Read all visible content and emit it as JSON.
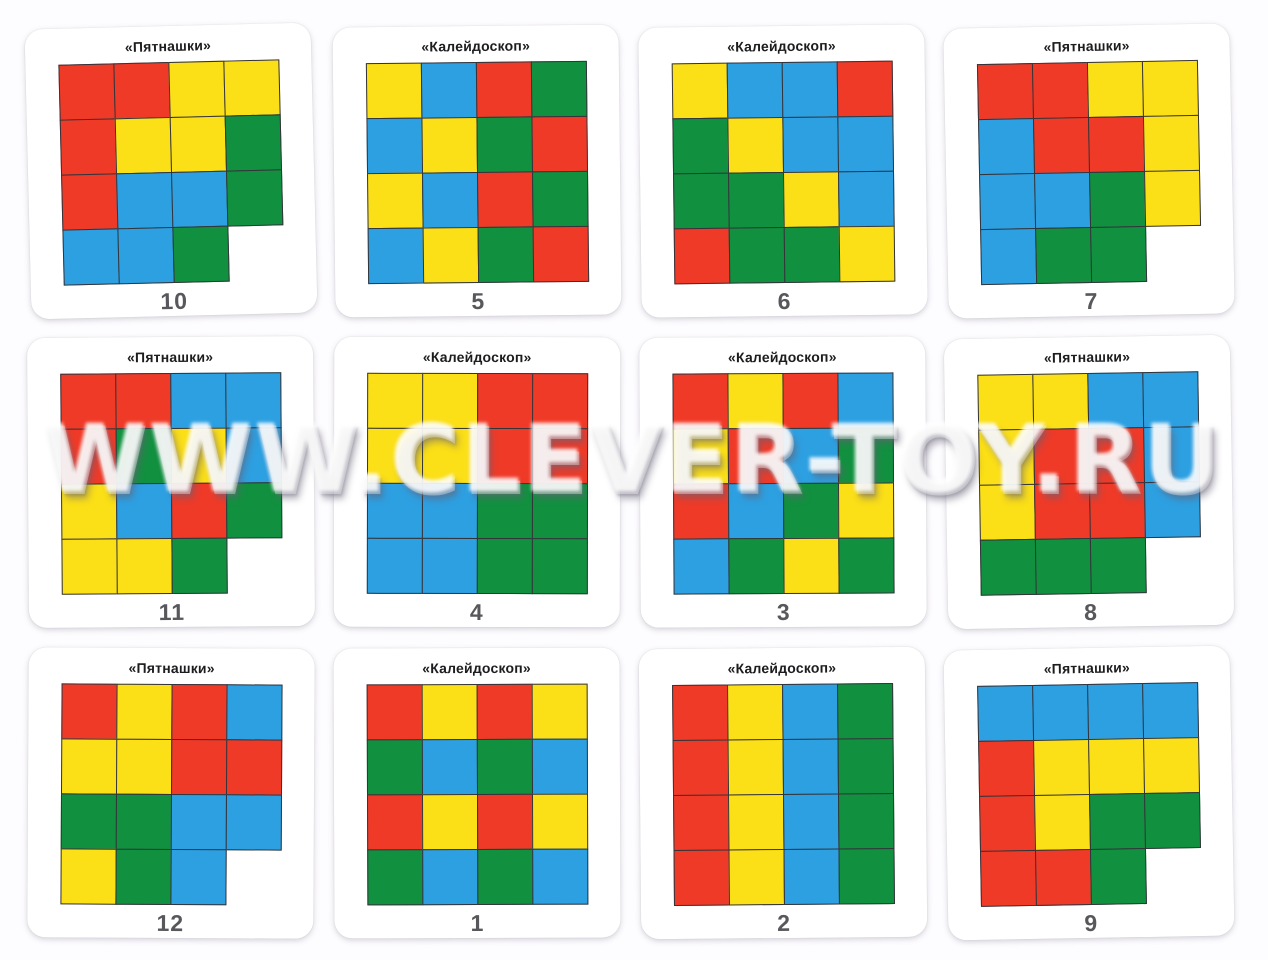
{
  "watermark": "WWW.CLEVER-TOY.RU",
  "palette": {
    "R": "#f03a28",
    "Y": "#fbdf17",
    "B": "#2da0e2",
    "G": "#11913f"
  },
  "titles": {
    "pyatnashki": "«Пятнашки»",
    "kaleidoscope": "«Калейдоскоп»"
  },
  "cards": [
    {
      "title": "«Пятнашки»",
      "number": "10",
      "grid": [
        [
          "R",
          "R",
          "Y",
          "Y"
        ],
        [
          "R",
          "Y",
          "Y",
          "G"
        ],
        [
          "R",
          "B",
          "B",
          "G"
        ],
        [
          "B",
          "B",
          "G",
          ""
        ]
      ]
    },
    {
      "title": "«Калейдоскоп»",
      "number": "5",
      "grid": [
        [
          "Y",
          "B",
          "R",
          "G"
        ],
        [
          "B",
          "Y",
          "G",
          "R"
        ],
        [
          "Y",
          "B",
          "R",
          "G"
        ],
        [
          "B",
          "Y",
          "G",
          "R"
        ]
      ]
    },
    {
      "title": "«Калейдоскоп»",
      "number": "6",
      "grid": [
        [
          "Y",
          "B",
          "B",
          "R"
        ],
        [
          "G",
          "Y",
          "B",
          "B"
        ],
        [
          "G",
          "G",
          "Y",
          "B"
        ],
        [
          "R",
          "G",
          "G",
          "Y"
        ]
      ]
    },
    {
      "title": "«Пятнашки»",
      "number": "7",
      "grid": [
        [
          "R",
          "R",
          "Y",
          "Y"
        ],
        [
          "B",
          "R",
          "R",
          "Y"
        ],
        [
          "B",
          "B",
          "G",
          "Y"
        ],
        [
          "B",
          "G",
          "G",
          ""
        ]
      ]
    },
    {
      "title": "«Пятнашки»",
      "number": "11",
      "grid": [
        [
          "R",
          "R",
          "B",
          "B"
        ],
        [
          "R",
          "G",
          "Y",
          "B"
        ],
        [
          "Y",
          "B",
          "R",
          "G"
        ],
        [
          "Y",
          "Y",
          "G",
          ""
        ]
      ]
    },
    {
      "title": "«Калейдоскоп»",
      "number": "4",
      "grid": [
        [
          "Y",
          "Y",
          "R",
          "R"
        ],
        [
          "Y",
          "Y",
          "R",
          "R"
        ],
        [
          "B",
          "B",
          "G",
          "G"
        ],
        [
          "B",
          "B",
          "G",
          "G"
        ]
      ]
    },
    {
      "title": "«Калейдоскоп»",
      "number": "3",
      "grid": [
        [
          "R",
          "Y",
          "R",
          "B"
        ],
        [
          "Y",
          "R",
          "B",
          "G"
        ],
        [
          "R",
          "B",
          "G",
          "Y"
        ],
        [
          "B",
          "G",
          "Y",
          "G"
        ]
      ]
    },
    {
      "title": "«Пятнашки»",
      "number": "8",
      "grid": [
        [
          "Y",
          "Y",
          "B",
          "B"
        ],
        [
          "Y",
          "R",
          "R",
          "B"
        ],
        [
          "Y",
          "R",
          "R",
          "B"
        ],
        [
          "G",
          "G",
          "G",
          ""
        ]
      ]
    },
    {
      "title": "«Пятнашки»",
      "number": "12",
      "grid": [
        [
          "R",
          "Y",
          "R",
          "B"
        ],
        [
          "Y",
          "Y",
          "R",
          "R"
        ],
        [
          "G",
          "G",
          "B",
          "B"
        ],
        [
          "Y",
          "G",
          "B",
          ""
        ]
      ]
    },
    {
      "title": "«Калейдоскоп»",
      "number": "1",
      "grid": [
        [
          "R",
          "Y",
          "R",
          "Y"
        ],
        [
          "G",
          "B",
          "G",
          "B"
        ],
        [
          "R",
          "Y",
          "R",
          "Y"
        ],
        [
          "G",
          "B",
          "G",
          "B"
        ]
      ]
    },
    {
      "title": "«Калейдоскоп»",
      "number": "2",
      "grid": [
        [
          "R",
          "Y",
          "B",
          "G"
        ],
        [
          "R",
          "Y",
          "B",
          "G"
        ],
        [
          "R",
          "Y",
          "B",
          "G"
        ],
        [
          "R",
          "Y",
          "B",
          "G"
        ]
      ]
    },
    {
      "title": "«Пятнашки»",
      "number": "9",
      "grid": [
        [
          "B",
          "B",
          "B",
          "B"
        ],
        [
          "R",
          "Y",
          "Y",
          "Y"
        ],
        [
          "R",
          "Y",
          "G",
          "G"
        ],
        [
          "R",
          "R",
          "G",
          ""
        ]
      ]
    }
  ]
}
